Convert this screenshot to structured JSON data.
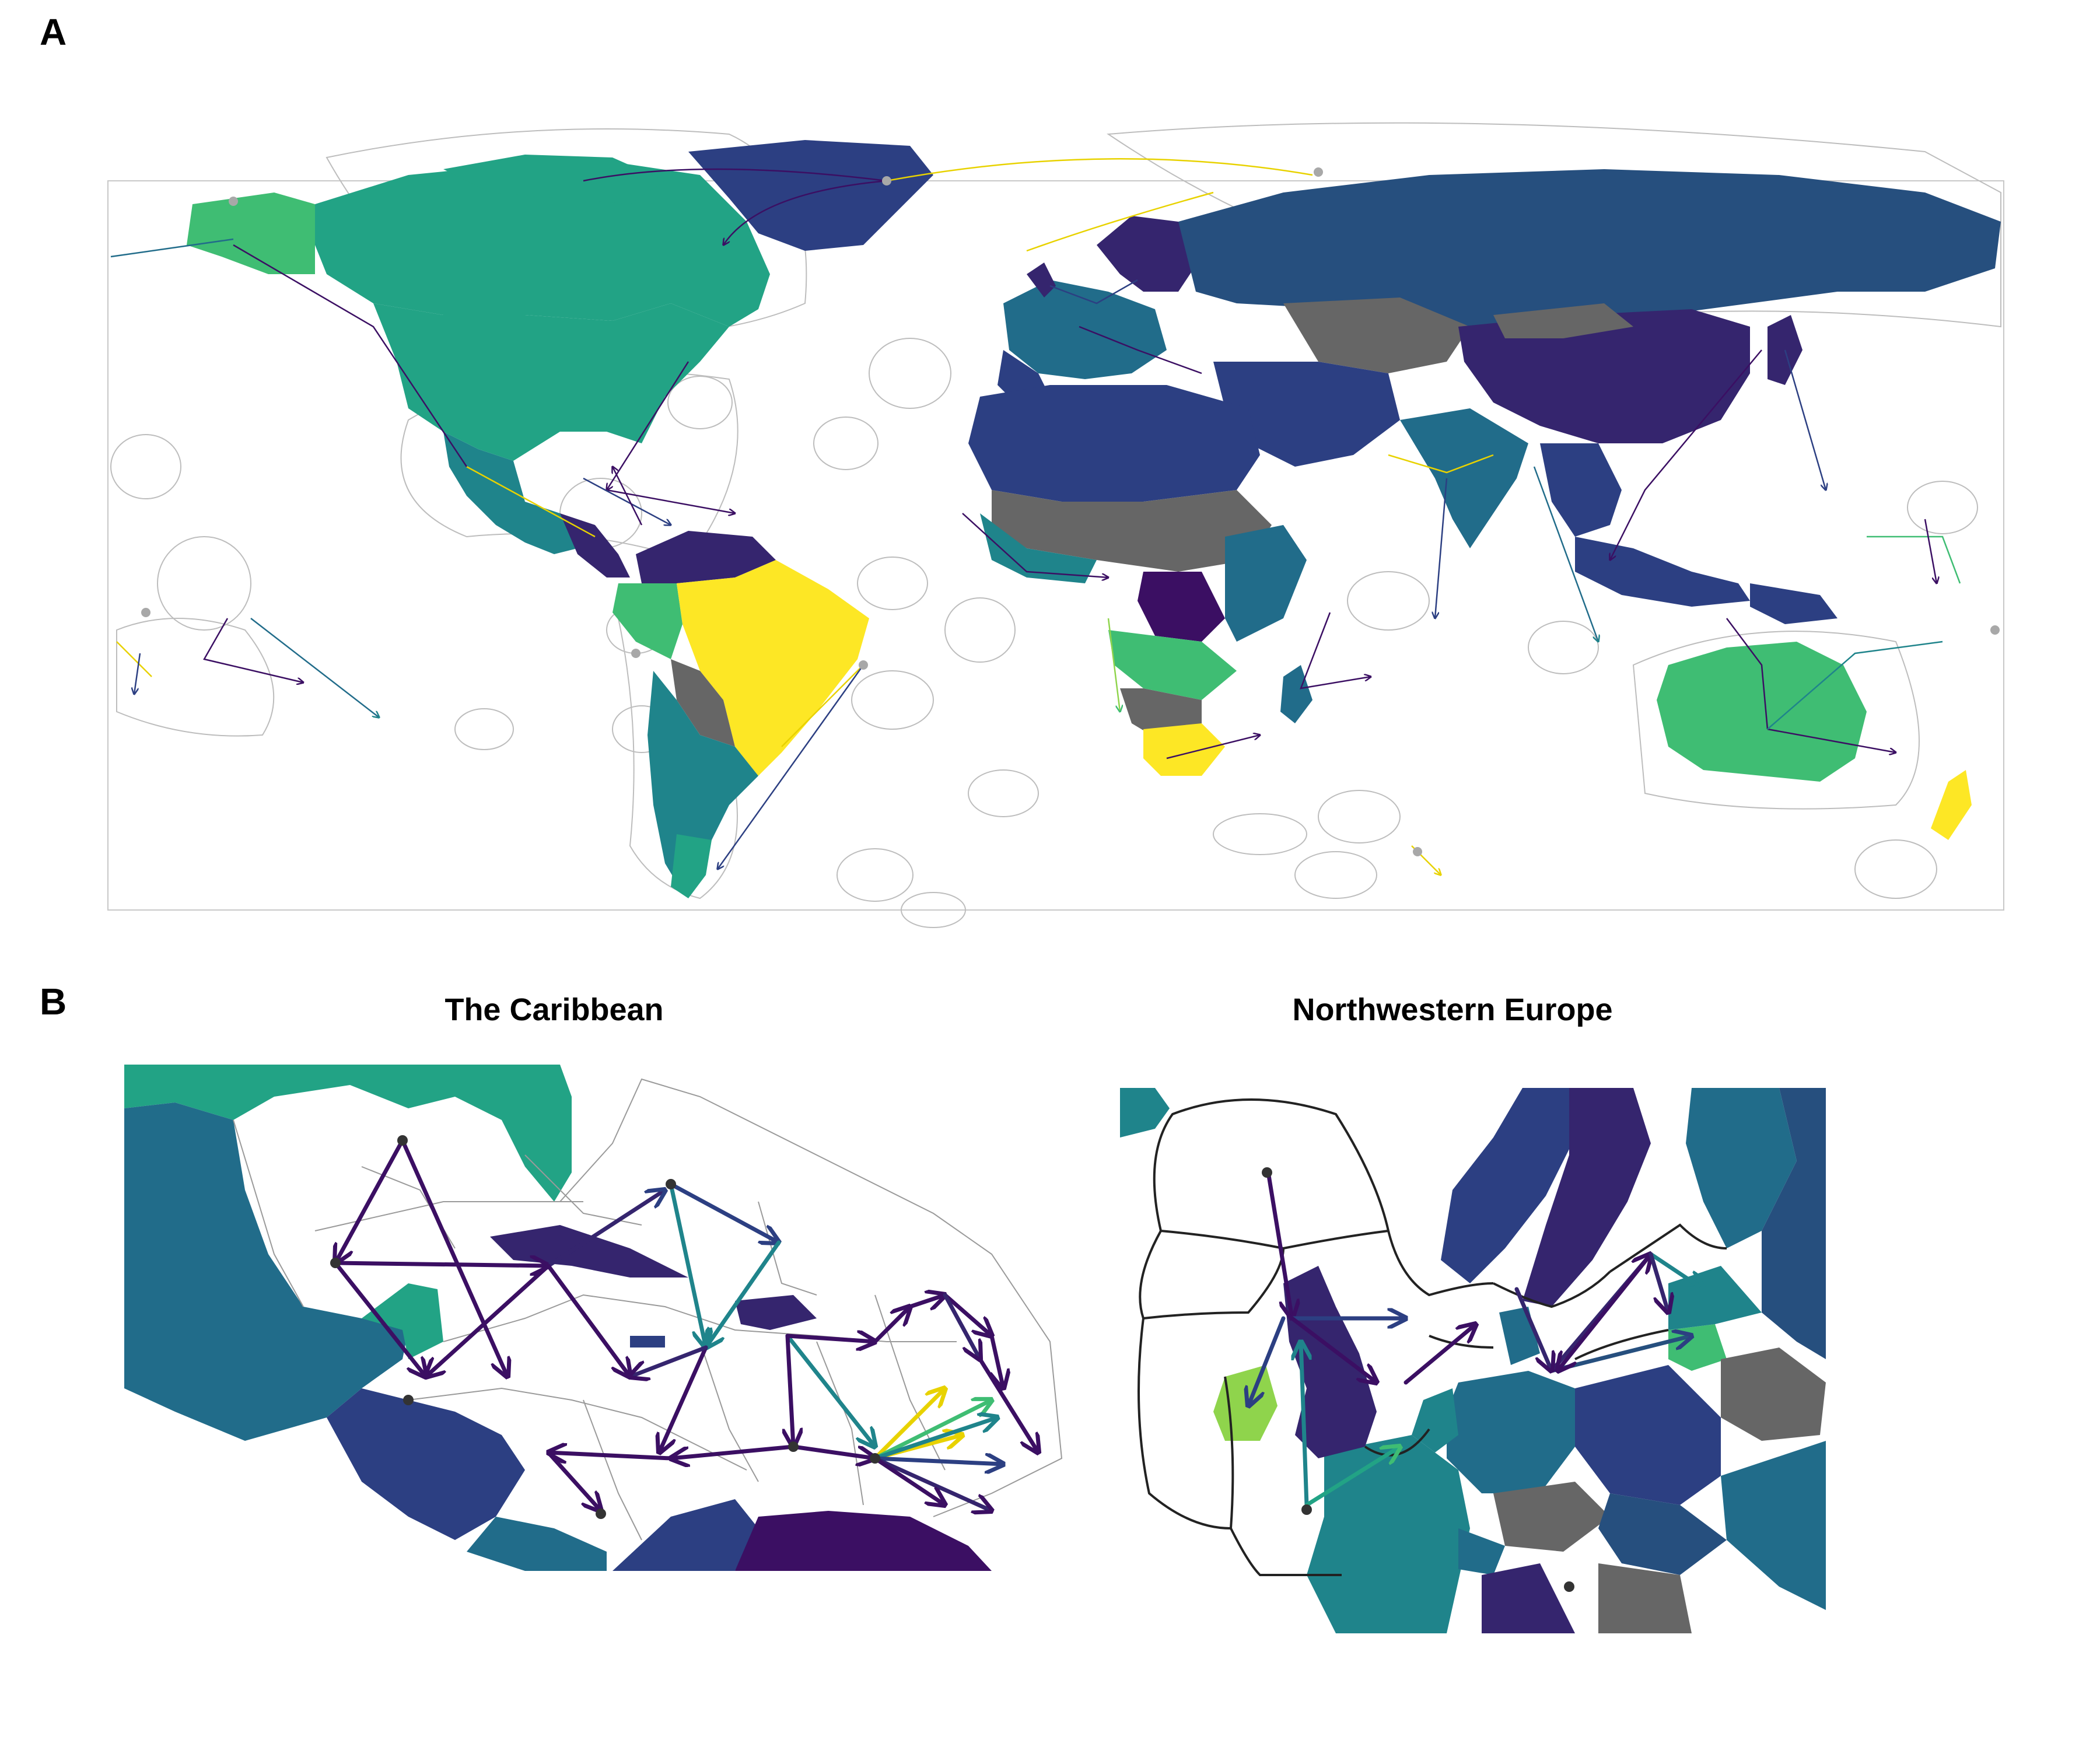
{
  "panels": {
    "a_label": "A",
    "b_label": "B",
    "insets": [
      {
        "title": "The Caribbean"
      },
      {
        "title": "Northwestern Europe"
      }
    ]
  },
  "colors": {
    "ocean": "#ffffff",
    "no_data": "#666666",
    "scale": [
      "#3b0f63",
      "#35256e",
      "#2c3f82",
      "#264f7e",
      "#216c8a",
      "#1f848b",
      "#22a385",
      "#3fbd73",
      "#8fd44c",
      "#fde725"
    ]
  },
  "arrow_color_names": [
    "dark-purple",
    "indigo",
    "blue",
    "teal",
    "green",
    "yellow"
  ]
}
